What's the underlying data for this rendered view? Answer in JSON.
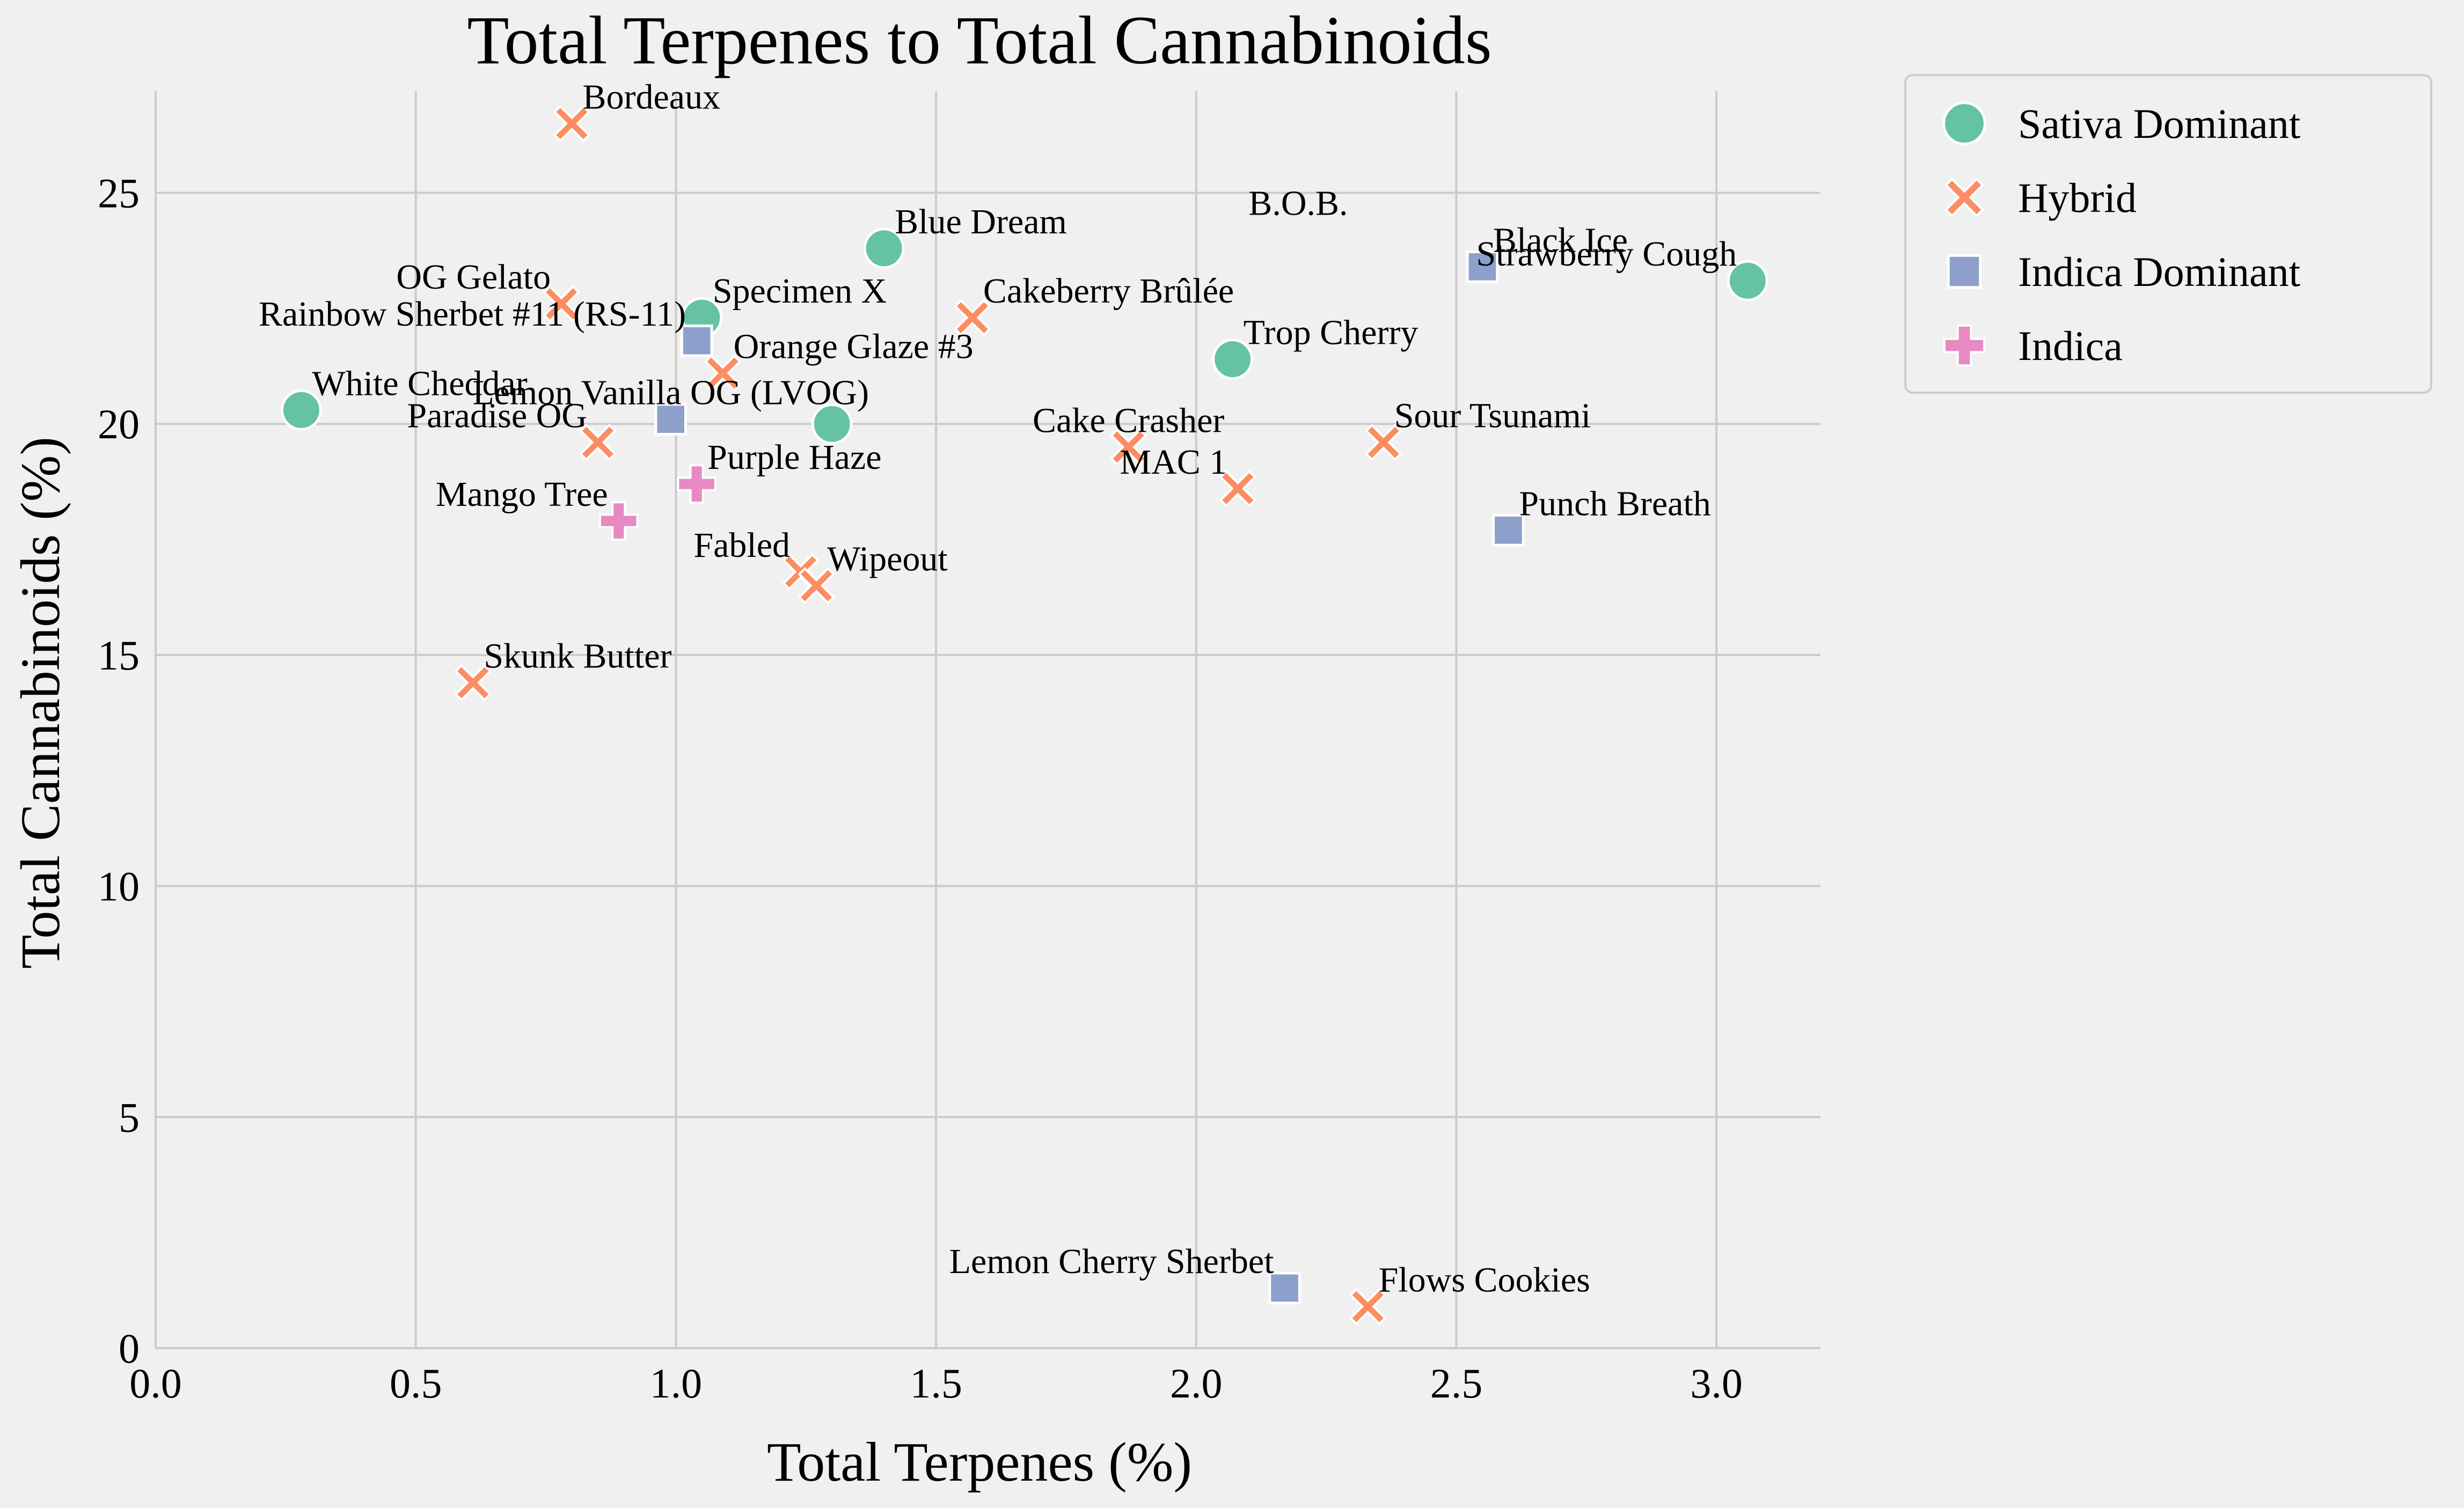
{
  "chart_data": {
    "type": "scatter",
    "title": "Total Terpenes to Total Cannabinoids",
    "xlabel": "Total Terpenes (%)",
    "ylabel": "Total Cannabinoids (%)",
    "xlim": [
      0,
      3.2
    ],
    "ylim": [
      0,
      27.2
    ],
    "xticks": [
      "0.0",
      "0.5",
      "1.0",
      "1.5",
      "2.0",
      "2.5",
      "3.0"
    ],
    "yticks": [
      "0",
      "5",
      "10",
      "15",
      "20",
      "25"
    ],
    "grid": true,
    "legend_position": "outside-top-right",
    "categories": [
      {
        "name": "Sativa Dominant",
        "marker": "circle",
        "color": "#66c2a5"
      },
      {
        "name": "Hybrid",
        "marker": "x",
        "color": "#fc8d62"
      },
      {
        "name": "Indica Dominant",
        "marker": "square",
        "color": "#8da0cb"
      },
      {
        "name": "Indica",
        "marker": "plus",
        "color": "#e78ac3"
      }
    ],
    "points": [
      {
        "x": 0.28,
        "y": 20.3,
        "category": "Sativa Dominant"
      },
      {
        "x": 1.05,
        "y": 22.3,
        "category": "Sativa Dominant"
      },
      {
        "x": 1.3,
        "y": 20.0,
        "category": "Sativa Dominant"
      },
      {
        "x": 1.4,
        "y": 23.8,
        "category": "Sativa Dominant"
      },
      {
        "x": 2.07,
        "y": 21.4,
        "category": "Sativa Dominant"
      },
      {
        "x": 3.06,
        "y": 23.1,
        "category": "Sativa Dominant"
      },
      {
        "x": 0.8,
        "y": 26.5,
        "category": "Hybrid"
      },
      {
        "x": 0.78,
        "y": 22.6,
        "category": "Hybrid"
      },
      {
        "x": 1.09,
        "y": 21.1,
        "category": "Hybrid"
      },
      {
        "x": 0.85,
        "y": 19.6,
        "category": "Hybrid"
      },
      {
        "x": 0.61,
        "y": 14.4,
        "category": "Hybrid"
      },
      {
        "x": 1.24,
        "y": 16.8,
        "category": "Hybrid"
      },
      {
        "x": 1.27,
        "y": 16.5,
        "category": "Hybrid"
      },
      {
        "x": 1.57,
        "y": 22.3,
        "category": "Hybrid"
      },
      {
        "x": 1.87,
        "y": 19.5,
        "category": "Hybrid"
      },
      {
        "x": 2.08,
        "y": 18.6,
        "category": "Hybrid"
      },
      {
        "x": 2.36,
        "y": 19.6,
        "category": "Hybrid"
      },
      {
        "x": 2.33,
        "y": 0.9,
        "category": "Hybrid"
      },
      {
        "x": 1.04,
        "y": 21.8,
        "category": "Indica Dominant"
      },
      {
        "x": 0.99,
        "y": 20.1,
        "category": "Indica Dominant"
      },
      {
        "x": 2.55,
        "y": 23.4,
        "category": "Indica Dominant"
      },
      {
        "x": 2.6,
        "y": 17.7,
        "category": "Indica Dominant"
      },
      {
        "x": 2.17,
        "y": 1.3,
        "category": "Indica Dominant"
      },
      {
        "x": 0.89,
        "y": 17.9,
        "category": "Indica"
      },
      {
        "x": 1.04,
        "y": 18.7,
        "category": "Indica"
      }
    ],
    "annotations": [
      {
        "text": "Bordeaux",
        "x": 0.8,
        "y": 26.5,
        "anchor": "start"
      },
      {
        "text": "OG Gelato",
        "x": 0.78,
        "y": 22.6,
        "anchor": "end"
      },
      {
        "text": "Specimen X",
        "x": 1.05,
        "y": 22.3,
        "anchor": "start"
      },
      {
        "text": "Blue Dream",
        "x": 1.4,
        "y": 23.8,
        "anchor": "start"
      },
      {
        "text": "B.O.B.",
        "x": 2.08,
        "y": 24.2,
        "anchor": "start"
      },
      {
        "text": "Black Ice",
        "x": 2.55,
        "y": 23.4,
        "anchor": "start"
      },
      {
        "text": "Strawberry Cough",
        "x": 3.06,
        "y": 23.1,
        "anchor": "end"
      },
      {
        "text": "Rainbow Sherbet #11 (RS-11)",
        "x": 1.04,
        "y": 21.8,
        "anchor": "end"
      },
      {
        "text": "Cakeberry Brûlée",
        "x": 1.57,
        "y": 22.3,
        "anchor": "start"
      },
      {
        "text": "Trop Cherry",
        "x": 2.07,
        "y": 21.4,
        "anchor": "start"
      },
      {
        "text": "Orange Glaze #3",
        "x": 1.09,
        "y": 21.1,
        "anchor": "start"
      },
      {
        "text": "White Cheddar",
        "x": 0.28,
        "y": 20.3,
        "anchor": "start"
      },
      {
        "text": "Lemon Vanilla OG (LVOG)",
        "x": 0.99,
        "y": 20.1,
        "anchor": "middle"
      },
      {
        "text": "Cake Crasher",
        "x": 1.87,
        "y": 19.5,
        "anchor": "middle"
      },
      {
        "text": "Sour Tsunami",
        "x": 2.36,
        "y": 19.6,
        "anchor": "start"
      },
      {
        "text": "Paradise OG",
        "x": 0.85,
        "y": 19.6,
        "anchor": "end"
      },
      {
        "text": "MAC 1",
        "x": 2.08,
        "y": 18.6,
        "anchor": "end"
      },
      {
        "text": "Purple Haze",
        "x": 1.04,
        "y": 18.7,
        "anchor": "start"
      },
      {
        "text": "Punch Breath",
        "x": 2.6,
        "y": 17.7,
        "anchor": "start"
      },
      {
        "text": "Mango Tree",
        "x": 0.89,
        "y": 17.9,
        "anchor": "end"
      },
      {
        "text": "Wipeout",
        "x": 1.27,
        "y": 16.5,
        "anchor": "start"
      },
      {
        "text": "Fabled",
        "x": 1.24,
        "y": 16.8,
        "anchor": "end"
      },
      {
        "text": "Skunk Butter",
        "x": 0.61,
        "y": 14.4,
        "anchor": "start"
      },
      {
        "text": "Lemon Cherry Sherbet",
        "x": 2.17,
        "y": 1.3,
        "anchor": "end"
      },
      {
        "text": "Flows Cookies",
        "x": 2.33,
        "y": 0.9,
        "anchor": "start"
      }
    ]
  }
}
